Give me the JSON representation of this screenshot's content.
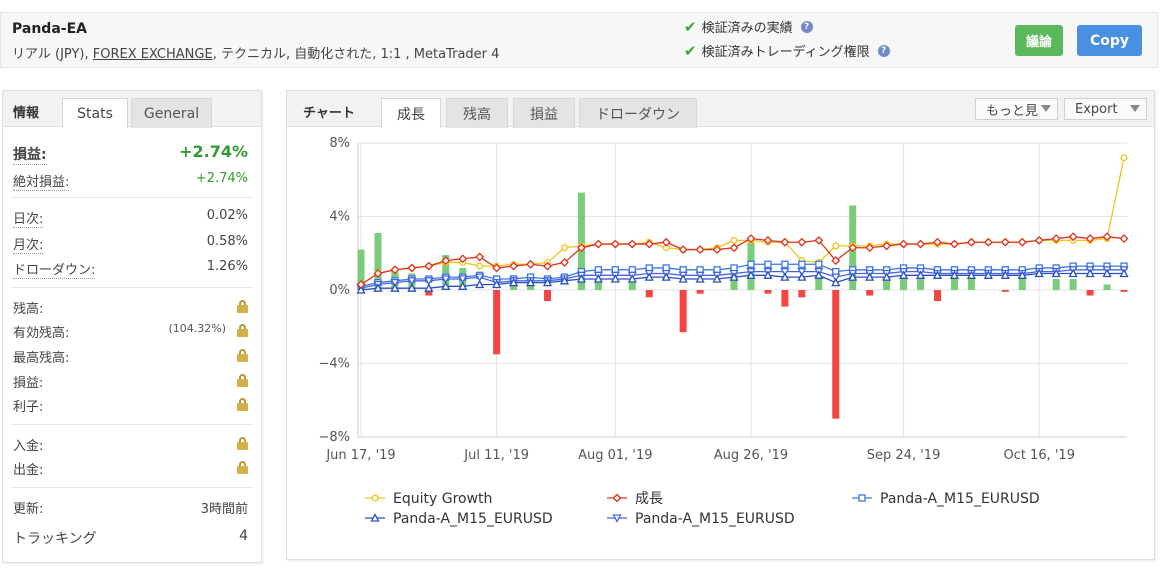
{
  "header": {
    "title": "Panda-EA",
    "subtitle_prefix": "リアル (JPY), ",
    "subtitle_link": "FOREX EXCHANGE",
    "subtitle_suffix": ", テクニカル, 自動化された, 1:1 , MetaTrader 4",
    "verified_track": "検証済みの実績",
    "verified_trading": "検証済みトレーディング権限",
    "discuss_label": "議論",
    "copy_label": "Copy"
  },
  "info_panel": {
    "label": "情報",
    "tabs": [
      "Stats",
      "General"
    ],
    "profit_label": "損益:",
    "profit_value": "+2.74%",
    "abs_profit_label": "絶対損益:",
    "abs_profit_value": "+2.74%",
    "daily_label": "日次:",
    "daily_value": "0.02%",
    "monthly_label": "月次:",
    "monthly_value": "0.58%",
    "drawdown_label": "ドローダウン:",
    "drawdown_value": "1.26%",
    "balance_label": "残高:",
    "equity_label": "有効残高:",
    "equity_pct": "(104.32%)",
    "highest_label": "最高残高:",
    "pl_label": "損益:",
    "interest_label": "利子:",
    "deposits_label": "入金:",
    "withdrawals_label": "出金:",
    "updated_label": "更新:",
    "updated_value": "3時間前",
    "tracking_label": "トラッキング",
    "tracking_value": "4"
  },
  "chart_panel": {
    "label": "チャート",
    "tabs": [
      "成長",
      "残高",
      "損益",
      "ドローダウン"
    ],
    "more_label": "もっと見",
    "export_label": "Export"
  },
  "colors": {
    "equity": "#f0c419",
    "growth": "#e0301e",
    "m15_square": "#3a78e0",
    "m15_tri_up": "#2a4fc0",
    "m15_tri_down": "#4466dd",
    "bar_pos": "#79cc79",
    "bar_neg": "#f44444"
  },
  "chart_data": {
    "type": "line",
    "x_labels": [
      "Jun 17, '19",
      "Jul 11, '19",
      "Aug 01, '19",
      "Aug 26, '19",
      "Sep 24, '19",
      "Oct 16, '19"
    ],
    "y_ticks": [
      "8%",
      "4%",
      "0%",
      "−4%",
      "−8%"
    ],
    "ylim": [
      -8,
      8
    ],
    "grid": true,
    "legend_position": "bottom",
    "x": [
      0,
      1,
      2,
      3,
      4,
      5,
      6,
      7,
      8,
      9,
      10,
      11,
      12,
      13,
      14,
      15,
      16,
      17,
      18,
      19,
      20,
      21,
      22,
      23,
      24,
      25,
      26,
      27,
      28,
      29,
      30,
      31,
      32,
      33,
      34,
      35,
      36,
      37,
      38,
      39,
      40,
      41,
      42,
      43,
      44,
      45
    ],
    "series": [
      {
        "name": "Equity Growth",
        "marker": "circle",
        "values": [
          0.3,
          0.9,
          1.1,
          1.2,
          1.3,
          1.5,
          1.5,
          1.3,
          1.3,
          1.4,
          1.4,
          1.5,
          2.3,
          2.4,
          2.5,
          2.5,
          2.5,
          2.6,
          2.3,
          2.2,
          2.2,
          2.3,
          2.7,
          2.7,
          2.6,
          2.6,
          1.6,
          1.5,
          2.4,
          2.4,
          2.4,
          2.5,
          2.5,
          2.5,
          2.5,
          2.5,
          2.6,
          2.6,
          2.6,
          2.6,
          2.7,
          2.7,
          2.7,
          2.7,
          2.8,
          7.2
        ]
      },
      {
        "name": "成長",
        "marker": "diamond",
        "values": [
          0.3,
          0.9,
          1.1,
          1.2,
          1.3,
          1.6,
          1.7,
          1.8,
          1.2,
          1.3,
          1.4,
          1.3,
          1.5,
          2.3,
          2.5,
          2.5,
          2.5,
          2.5,
          2.6,
          2.2,
          2.2,
          2.2,
          2.3,
          2.8,
          2.7,
          2.6,
          2.6,
          2.7,
          1.6,
          2.3,
          2.3,
          2.4,
          2.5,
          2.5,
          2.6,
          2.5,
          2.6,
          2.6,
          2.6,
          2.6,
          2.7,
          2.8,
          2.9,
          2.8,
          2.9,
          2.8
        ]
      },
      {
        "name": "Panda-A_M15_EURUSD",
        "marker": "square",
        "values": [
          0.2,
          0.4,
          0.5,
          0.6,
          0.6,
          0.7,
          0.7,
          0.8,
          0.6,
          0.6,
          0.7,
          0.6,
          0.7,
          1.0,
          1.1,
          1.1,
          1.1,
          1.2,
          1.2,
          1.1,
          1.1,
          1.1,
          1.2,
          1.4,
          1.4,
          1.4,
          1.4,
          1.4,
          1.0,
          1.1,
          1.1,
          1.1,
          1.2,
          1.2,
          1.1,
          1.1,
          1.1,
          1.1,
          1.1,
          1.1,
          1.2,
          1.2,
          1.3,
          1.3,
          1.3,
          1.3
        ]
      },
      {
        "name": "Panda-A_M15_EURUSD",
        "marker": "triangle-up",
        "values": [
          0.0,
          0.1,
          0.1,
          0.1,
          0.1,
          0.2,
          0.2,
          0.3,
          0.3,
          0.4,
          0.4,
          0.4,
          0.5,
          0.6,
          0.6,
          0.6,
          0.6,
          0.7,
          0.7,
          0.6,
          0.6,
          0.6,
          0.7,
          0.8,
          0.8,
          0.7,
          0.7,
          0.8,
          0.4,
          0.7,
          0.7,
          0.7,
          0.8,
          0.8,
          0.8,
          0.8,
          0.8,
          0.8,
          0.8,
          0.8,
          0.9,
          0.9,
          0.9,
          0.9,
          0.9,
          0.9
        ]
      },
      {
        "name": "Panda-A_M15_EURUSD",
        "marker": "triangle-down",
        "values": [
          0.1,
          0.3,
          0.4,
          0.5,
          0.5,
          0.6,
          0.6,
          0.7,
          0.4,
          0.5,
          0.5,
          0.5,
          0.6,
          0.8,
          0.8,
          0.8,
          0.8,
          0.9,
          0.9,
          0.8,
          0.8,
          0.8,
          0.9,
          1.0,
          1.0,
          1.0,
          1.0,
          1.0,
          0.7,
          0.9,
          0.9,
          0.9,
          1.0,
          1.0,
          0.9,
          0.9,
          0.9,
          0.9,
          0.9,
          0.9,
          1.0,
          1.0,
          1.1,
          1.1,
          1.1,
          1.1
        ]
      }
    ],
    "bars": {
      "name": "daily",
      "values": [
        2.2,
        3.1,
        1.1,
        0.9,
        -0.3,
        1.9,
        1.2,
        0,
        -3.5,
        0.6,
        0.9,
        -0.6,
        0,
        5.3,
        0.6,
        0,
        0.4,
        -0.4,
        0,
        -2.3,
        -0.2,
        0,
        0.9,
        2.6,
        -0.2,
        -0.9,
        -0.4,
        0.6,
        -7.0,
        4.6,
        -0.3,
        0.7,
        0.6,
        0.7,
        -0.6,
        0.6,
        0.6,
        0,
        -0.1,
        0.6,
        0,
        0.6,
        0.6,
        -0.3,
        0.3,
        -0.1
      ]
    }
  }
}
